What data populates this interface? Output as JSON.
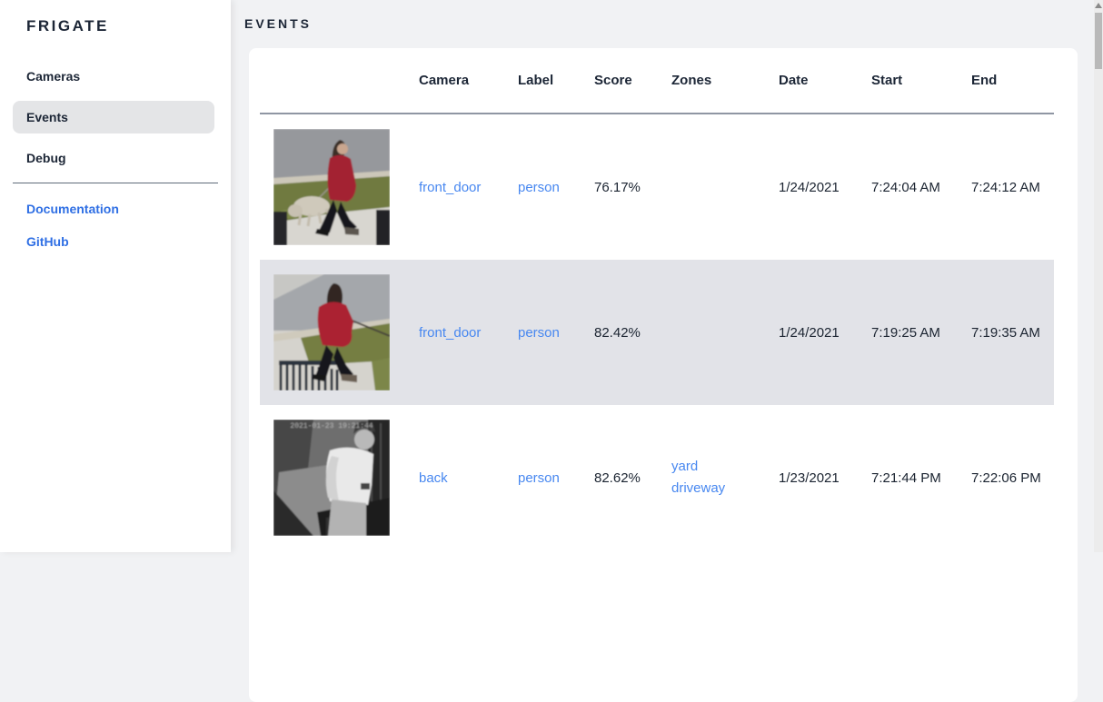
{
  "app": {
    "title": "FRIGATE"
  },
  "colors": {
    "bg_main": "#f1f2f4",
    "text_dark": "#1c2636",
    "sidebar_link": "#2f6fe4",
    "table_link": "#4787f0",
    "row_highlight": "#e2e3e8",
    "nav_pill": "#e4e5e7"
  },
  "sidebar": {
    "nav": [
      {
        "label": "Cameras",
        "active": false
      },
      {
        "label": "Events",
        "active": true
      },
      {
        "label": "Debug",
        "active": false
      }
    ],
    "links": [
      {
        "label": "Documentation"
      },
      {
        "label": "GitHub"
      }
    ]
  },
  "header": {
    "title": "EVENTS"
  },
  "table": {
    "columns": [
      "Camera",
      "Label",
      "Score",
      "Zones",
      "Date",
      "Start",
      "End"
    ],
    "rows": [
      {
        "thumb": "day-red-coat-dog",
        "camera": "front_door",
        "label": "person",
        "score": "76.17%",
        "zones": [],
        "date": "1/24/2021",
        "start": "7:24:04 AM",
        "end": "7:24:12 AM",
        "highlighted": false
      },
      {
        "thumb": "day-red-hoodie-dog",
        "camera": "front_door",
        "label": "person",
        "score": "82.42%",
        "zones": [],
        "date": "1/24/2021",
        "start": "7:19:25 AM",
        "end": "7:19:35 AM",
        "highlighted": true
      },
      {
        "thumb": "night-ir-white-shirt",
        "camera": "back",
        "label": "person",
        "score": "82.62%",
        "zones": [
          "yard",
          "driveway"
        ],
        "date": "1/23/2021",
        "start": "7:21:44 PM",
        "end": "7:22:06 PM",
        "highlighted": false
      }
    ]
  },
  "thumbnail_overlay": {
    "ir_timestamp": "2021-01-23 19:21:44"
  }
}
